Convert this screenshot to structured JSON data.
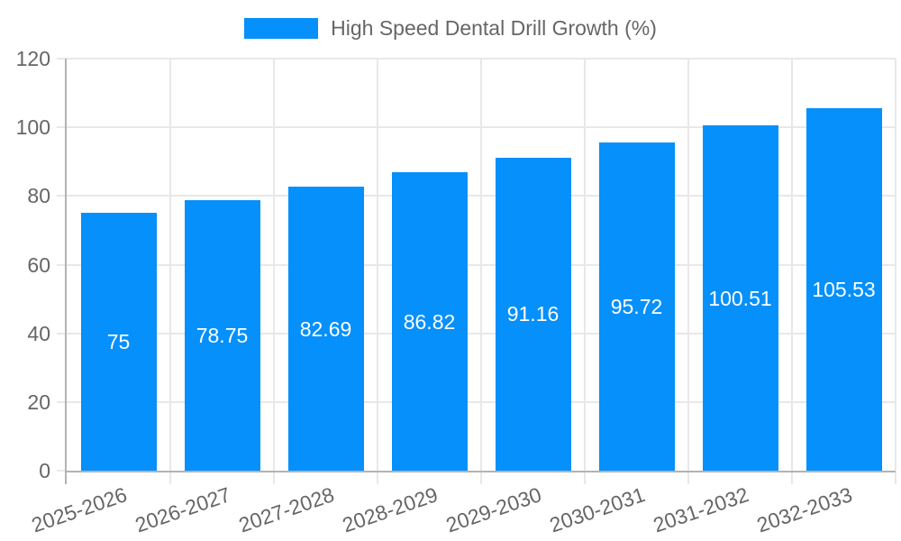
{
  "legend": {
    "label": "High Speed Dental Drill Growth (%)"
  },
  "chart_data": {
    "type": "bar",
    "title": "",
    "categories": [
      "2025-2026",
      "2026-2027",
      "2027-2028",
      "2028-2029",
      "2029-2030",
      "2030-2031",
      "2031-2032",
      "2032-2033"
    ],
    "series": [
      {
        "name": "High Speed Dental Drill Growth (%)",
        "values": [
          75,
          78.75,
          82.69,
          86.82,
          91.16,
          95.72,
          100.51,
          105.53
        ]
      }
    ],
    "bar_labels": [
      "75",
      "78.75",
      "82.69",
      "86.82",
      "91.16",
      "95.72",
      "100.51",
      "105.53"
    ],
    "xlabel": "",
    "ylabel": "",
    "ylim": [
      0,
      120
    ],
    "yticks": [
      0,
      20,
      40,
      60,
      80,
      100,
      120
    ],
    "grid": true,
    "data_labels_inside_bars": true,
    "legend_position": "top-center",
    "x_tick_label_rotation_deg": -19,
    "colors": {
      "bar": "#0590fb",
      "bar_label_text": "#ffffff",
      "axis_text": "#666666",
      "grid": "#e8e8e8",
      "axis_line": "#b3b3b3",
      "background": "#ffffff"
    }
  }
}
